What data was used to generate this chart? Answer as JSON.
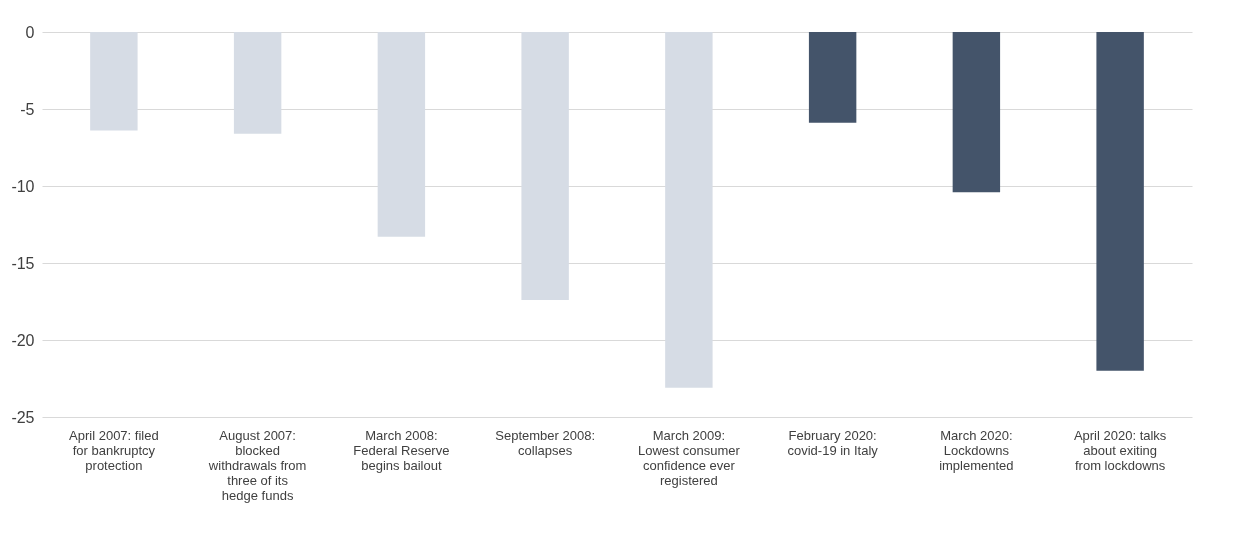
{
  "chart_data": {
    "type": "bar",
    "categories": [
      "April 2007: filed for bankruptcy protection",
      "August 2007: blocked withdrawals from three of its hedge funds",
      "March 2008: Federal Reserve begins bailout",
      "September 2008: collapses",
      "March 2009: Lowest consumer confidence ever registered",
      "February 2020: covid-19 in Italy",
      "March 2020: Lockdowns implemented",
      "April 2020: talks about exiting from lockdowns"
    ],
    "values": [
      -6.4,
      -6.6,
      -13.3,
      -17.4,
      -23.1,
      -5.9,
      -10.4,
      -22.0
    ],
    "colors": [
      "#d6dce5",
      "#d6dce5",
      "#d6dce5",
      "#d6dce5",
      "#d6dce5",
      "#44546a",
      "#44546a",
      "#44546a"
    ],
    "ylim": [
      -25,
      0
    ],
    "yticks": [
      -25,
      -20,
      -15,
      -10,
      -5,
      0
    ],
    "grid": "y"
  }
}
